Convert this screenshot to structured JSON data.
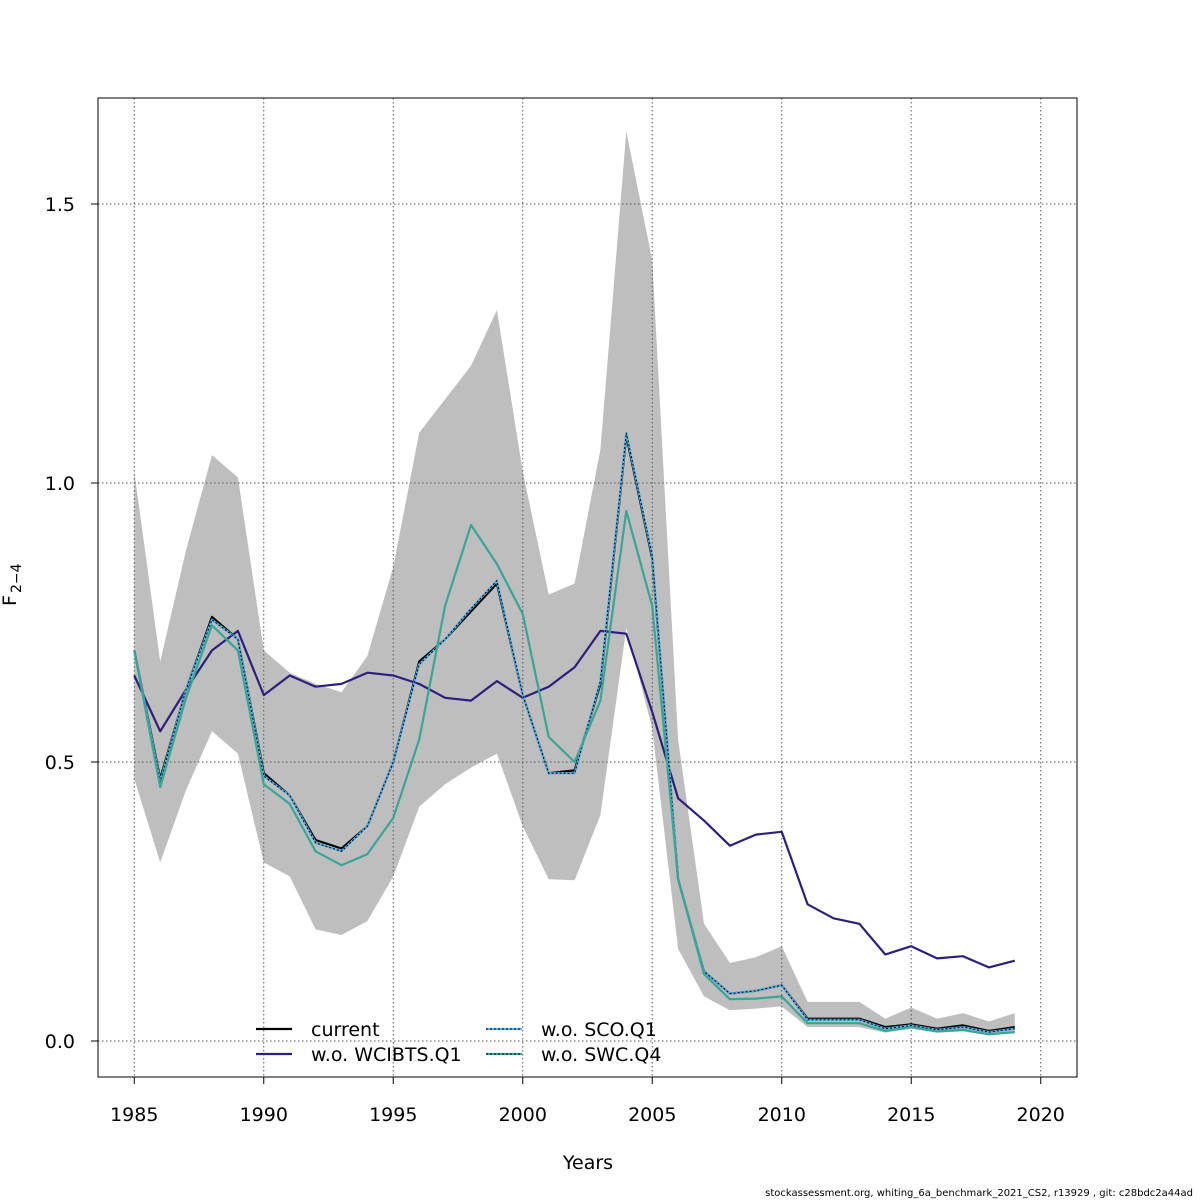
{
  "chart_data": {
    "type": "line",
    "xlabel": "Years",
    "ylabel_main": "F",
    "ylabel_sub": "2−4",
    "xlim": [
      1983.6,
      2021.4
    ],
    "ylim": [
      -0.0645,
      1.69
    ],
    "x_ticks": [
      1985,
      1990,
      1995,
      2000,
      2005,
      2010,
      2015,
      2020
    ],
    "y_ticks": [
      0.0,
      0.5,
      1.0,
      1.5
    ],
    "x_tick_labels": [
      "1985",
      "1990",
      "1995",
      "2000",
      "2005",
      "2010",
      "2015",
      "2020"
    ],
    "y_tick_labels": [
      "0.0",
      "0.5",
      "1.0",
      "1.5"
    ],
    "grid": true,
    "legend_position": "bottom-left",
    "x": [
      1985,
      1986,
      1987,
      1988,
      1989,
      1990,
      1991,
      1992,
      1993,
      1994,
      1995,
      1996,
      1997,
      1998,
      1999,
      2000,
      2001,
      2002,
      2003,
      2004,
      2005,
      2006,
      2007,
      2008,
      2009,
      2010,
      2011,
      2012,
      2013,
      2014,
      2015,
      2016,
      2017,
      2018,
      2019
    ],
    "band": {
      "color": "#bebebe",
      "upper": [
        1.02,
        0.68,
        0.88,
        1.05,
        1.01,
        0.7,
        0.66,
        0.64,
        0.625,
        0.69,
        0.85,
        1.09,
        1.15,
        1.21,
        1.31,
        1.02,
        0.8,
        0.82,
        1.06,
        1.63,
        1.4,
        0.54,
        0.21,
        0.14,
        0.15,
        0.17,
        0.07,
        0.07,
        0.07,
        0.04,
        0.06,
        0.04,
        0.05,
        0.035,
        0.05
      ],
      "lower": [
        0.47,
        0.32,
        0.45,
        0.555,
        0.515,
        0.32,
        0.295,
        0.2,
        0.19,
        0.215,
        0.295,
        0.42,
        0.46,
        0.49,
        0.515,
        0.385,
        0.29,
        0.288,
        0.405,
        0.74,
        0.56,
        0.165,
        0.08,
        0.055,
        0.058,
        0.062,
        0.025,
        0.025,
        0.025,
        0.015,
        0.022,
        0.015,
        0.017,
        0.01,
        0.016
      ]
    },
    "series": [
      {
        "name": "current",
        "color": "#000000",
        "dashed": false,
        "width": 2.2,
        "values": [
          0.7,
          0.47,
          0.63,
          0.76,
          0.72,
          0.48,
          0.44,
          0.36,
          0.345,
          0.385,
          0.5,
          0.68,
          0.72,
          0.77,
          0.82,
          0.62,
          0.48,
          0.485,
          0.64,
          1.085,
          0.865,
          0.29,
          0.125,
          0.085,
          0.09,
          0.1,
          0.04,
          0.04,
          0.04,
          0.025,
          0.03,
          0.022,
          0.028,
          0.018,
          0.025
        ]
      },
      {
        "name": "w.o. WCIBTS.Q1",
        "color": "#2d1f7a",
        "dashed": false,
        "width": 2.2,
        "values": [
          0.655,
          0.555,
          0.63,
          0.7,
          0.735,
          0.62,
          0.655,
          0.635,
          0.64,
          0.66,
          0.655,
          0.64,
          0.615,
          0.61,
          0.645,
          0.615,
          0.635,
          0.67,
          0.735,
          0.73,
          0.59,
          0.435,
          0.395,
          0.35,
          0.37,
          0.375,
          0.245,
          0.22,
          0.21,
          0.155,
          0.17,
          0.148,
          0.152,
          0.132,
          0.144
        ]
      },
      {
        "name": "w.o. SCO.Q1",
        "color": "#56b4e9",
        "dashed": true,
        "width": 2.2,
        "values": [
          0.7,
          0.465,
          0.63,
          0.755,
          0.72,
          0.475,
          0.44,
          0.355,
          0.34,
          0.385,
          0.5,
          0.675,
          0.72,
          0.775,
          0.825,
          0.62,
          0.48,
          0.48,
          0.645,
          1.09,
          0.87,
          0.29,
          0.125,
          0.085,
          0.09,
          0.1,
          0.038,
          0.038,
          0.038,
          0.022,
          0.028,
          0.02,
          0.025,
          0.016,
          0.022
        ]
      },
      {
        "name": "w.o. SWC.Q4",
        "color": "#3ba595",
        "dashed": false,
        "width": 2.2,
        "values": [
          0.7,
          0.455,
          0.615,
          0.745,
          0.7,
          0.46,
          0.425,
          0.34,
          0.315,
          0.335,
          0.4,
          0.54,
          0.78,
          0.925,
          0.855,
          0.765,
          0.545,
          0.5,
          0.61,
          0.95,
          0.78,
          0.29,
          0.12,
          0.075,
          0.076,
          0.08,
          0.032,
          0.032,
          0.032,
          0.018,
          0.025,
          0.017,
          0.02,
          0.012,
          0.016
        ]
      }
    ]
  },
  "footer_text": "stockassessment.org, whiting_6a_benchmark_2021_CS2, r13929 , git: c28bdc2a44ad"
}
